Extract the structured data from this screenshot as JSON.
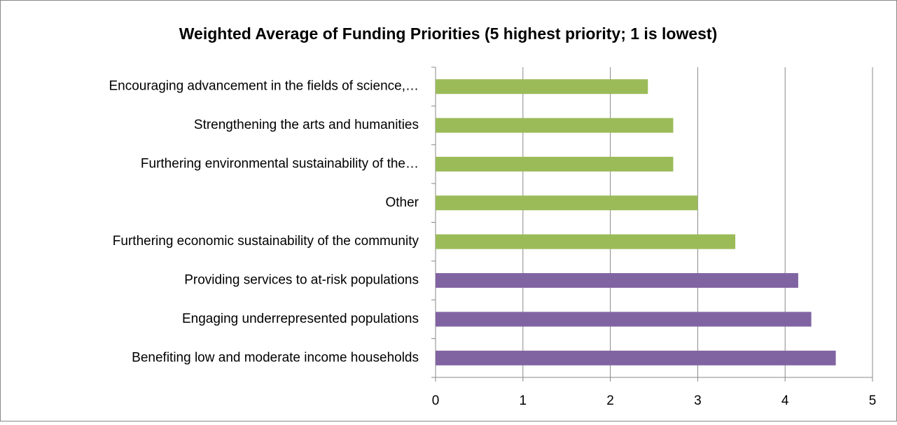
{
  "chart_data": {
    "type": "bar",
    "orientation": "horizontal",
    "title": "Weighted Average of Funding Priorities (5 highest priority; 1 is lowest)",
    "categories": [
      "Encouraging advancement in the fields of science,…",
      "Strengthening the arts and humanities",
      "Furthering environmental sustainability of the…",
      "Other",
      "Furthering economic sustainability of the community",
      "Providing services to at-risk populations",
      "Engaging underrepresented populations",
      "Benefiting low and moderate income households"
    ],
    "values": [
      2.43,
      2.72,
      2.72,
      3.0,
      3.43,
      4.15,
      4.3,
      4.58
    ],
    "colors": [
      "#9bbb59",
      "#9bbb59",
      "#9bbb59",
      "#9bbb59",
      "#9bbb59",
      "#8064a2",
      "#8064a2",
      "#8064a2"
    ],
    "xlim": [
      0,
      5
    ],
    "xticks": [
      0,
      1,
      2,
      3,
      4,
      5
    ],
    "grid": true
  }
}
